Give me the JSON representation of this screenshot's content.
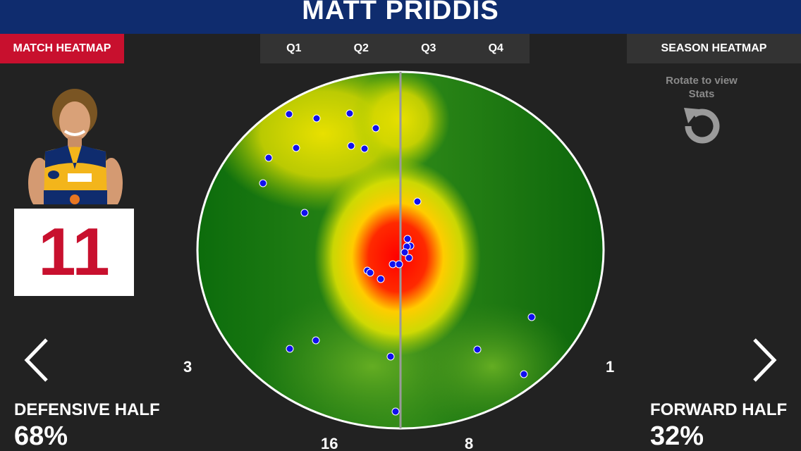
{
  "header": {
    "player_name": "MATT PRIDDIS"
  },
  "toolbar": {
    "match_heatmap": "MATCH HEATMAP",
    "quarters": [
      "Q1",
      "Q2",
      "Q3",
      "Q4"
    ],
    "season_heatmap": "SEASON HEATMAP"
  },
  "player": {
    "number": "11"
  },
  "rotate_hint": {
    "line1": "Rotate to view",
    "line2": "Stats"
  },
  "counts": {
    "left_flank": "3",
    "right_flank": "1",
    "bottom_left": "16",
    "bottom_right": "8"
  },
  "defensive": {
    "label": "DEFENSIVE HALF",
    "percent": "68%"
  },
  "forward": {
    "label": "FORWARD HALF",
    "percent": "32%"
  },
  "colors": {
    "title_bar": "#0f2c6e",
    "accent_red": "#c8102e",
    "tab_bg": "#333333",
    "background": "#222222",
    "heat_low": "#0b6b0b",
    "heat_mid": "#e8e000",
    "heat_high": "#ff0000",
    "dot": "#1010ee"
  },
  "icons": {
    "rotate": "rotate-icon",
    "prev": "chevron-left-icon",
    "next": "chevron-right-icon"
  }
}
